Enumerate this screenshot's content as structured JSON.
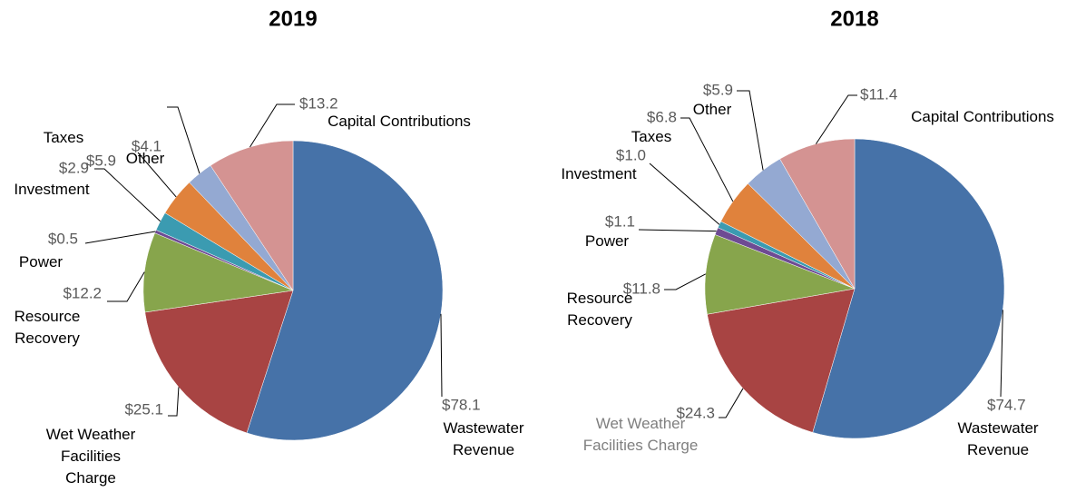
{
  "chart_data": [
    {
      "type": "pie",
      "title": "2019",
      "categories": [
        "Wastewater Revenue",
        "Wet Weather Facilities Charge",
        "Resource Recovery",
        "Power",
        "Investment",
        "Taxes",
        "Other",
        "Capital Contributions"
      ],
      "values": [
        78.1,
        25.1,
        12.2,
        0.5,
        2.9,
        5.9,
        4.1,
        13.2
      ],
      "value_labels": [
        "$78.1",
        "$25.1",
        "$12.2",
        "$0.5",
        "$2.9",
        "$5.9",
        "$4.1",
        "$13.2"
      ],
      "colors": [
        "#4672a8",
        "#a84443",
        "#87a54c",
        "#6e4b93",
        "#3b9bb1",
        "#e0823c",
        "#94a9d2",
        "#d49392"
      ]
    },
    {
      "type": "pie",
      "title": "2018",
      "categories": [
        "Wastewater Revenue",
        "Wet Weather Facilities Charge",
        "Resource Recovery",
        "Power",
        "Investment",
        "Taxes",
        "Other",
        "Capital Contributions"
      ],
      "values": [
        74.7,
        24.3,
        11.8,
        1.1,
        1.0,
        6.8,
        5.9,
        11.4
      ],
      "value_labels": [
        "$74.7",
        "$24.3",
        "$11.8",
        "$1.1",
        "$1.0",
        "$6.8",
        "$5.9",
        "$11.4"
      ],
      "colors": [
        "#4672a8",
        "#a84443",
        "#87a54c",
        "#6e4b93",
        "#3b9bb1",
        "#e0823c",
        "#94a9d2",
        "#d49392"
      ]
    }
  ]
}
